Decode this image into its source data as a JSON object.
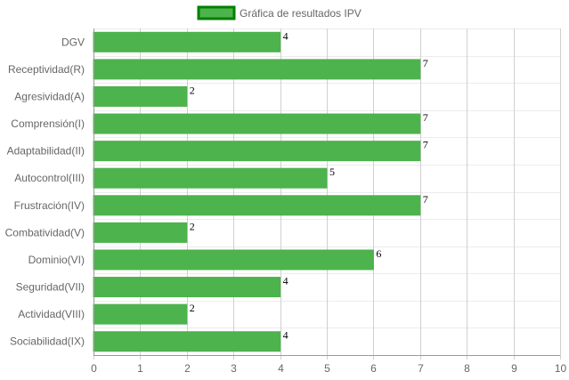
{
  "chart_data": {
    "type": "bar",
    "orientation": "horizontal",
    "categories": [
      "DGV",
      "Receptividad(R)",
      "Agresividad(A)",
      "Comprensión(I)",
      "Adaptabilidad(II)",
      "Autocontrol(III)",
      "Frustración(IV)",
      "Combatividad(V)",
      "Dominio(VI)",
      "Seguridad(VII)",
      "Actividad(VIII)",
      "Sociabilidad(IX)"
    ],
    "series": [
      {
        "name": "Gráfica de resultados IPV",
        "values": [
          4,
          7,
          2,
          7,
          7,
          5,
          7,
          2,
          6,
          4,
          2,
          4
        ]
      }
    ],
    "data_labels": [
      "4",
      "7",
      "2",
      "7",
      "7",
      "5",
      "7",
      "2",
      "6",
      "4",
      "2",
      "4"
    ],
    "x_ticks": [
      "0",
      "1",
      "2",
      "3",
      "4",
      "5",
      "6",
      "7",
      "8",
      "9",
      "10"
    ],
    "xlim": [
      0,
      10
    ],
    "xlabel": "",
    "ylabel": "",
    "grid": true,
    "legend_position": "top-center",
    "colors": {
      "bar_fill": "#4db34d",
      "bar_stroke": "#4db34d",
      "legend_fill": "#4db34d",
      "legend_stroke": "#008000",
      "grid_vertical": "#d0d0d0",
      "grid_horizontal": "#ececec",
      "axis_line": "#999999",
      "text": "#666666",
      "value_text": "#000000"
    }
  }
}
